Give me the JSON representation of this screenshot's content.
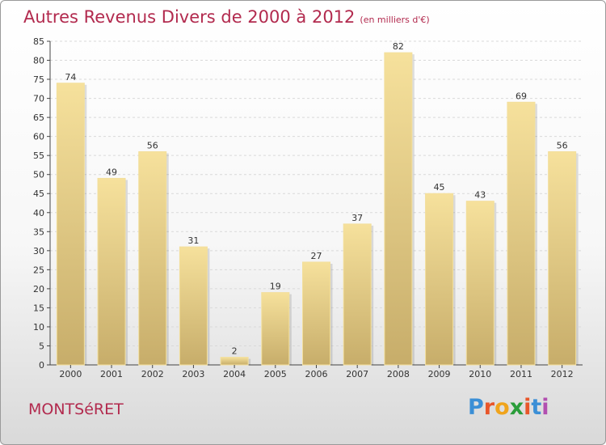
{
  "header": {
    "title": "Autres Revenus Divers de 2000 à 2012",
    "subtitle": "(en milliers d'€)"
  },
  "footer": {
    "commune": "MONTSéRET",
    "logo": "Proxiti"
  },
  "logo_colors": [
    "#3b8fd6",
    "#e8562a",
    "#f0a41c",
    "#2a9d3a",
    "#e8562a",
    "#3b8fd6",
    "#b24fb0"
  ],
  "colors": {
    "title": "#b22a4e",
    "bar_light": "#f6e19c",
    "bar_dark": "#c7ad6a",
    "grid": "#d9d9d9"
  },
  "chart_data": {
    "type": "bar",
    "categories": [
      "2000",
      "2001",
      "2002",
      "2003",
      "2004",
      "2005",
      "2006",
      "2007",
      "2008",
      "2009",
      "2010",
      "2011",
      "2012"
    ],
    "values": [
      74,
      49,
      56,
      31,
      2,
      19,
      27,
      37,
      82,
      45,
      43,
      69,
      56
    ],
    "ylim": [
      0,
      85
    ],
    "yticks": [
      0,
      5,
      10,
      15,
      20,
      25,
      30,
      35,
      40,
      45,
      50,
      55,
      60,
      65,
      70,
      75,
      80,
      85
    ],
    "grid": "horizontal dashed",
    "data_labels": true
  }
}
